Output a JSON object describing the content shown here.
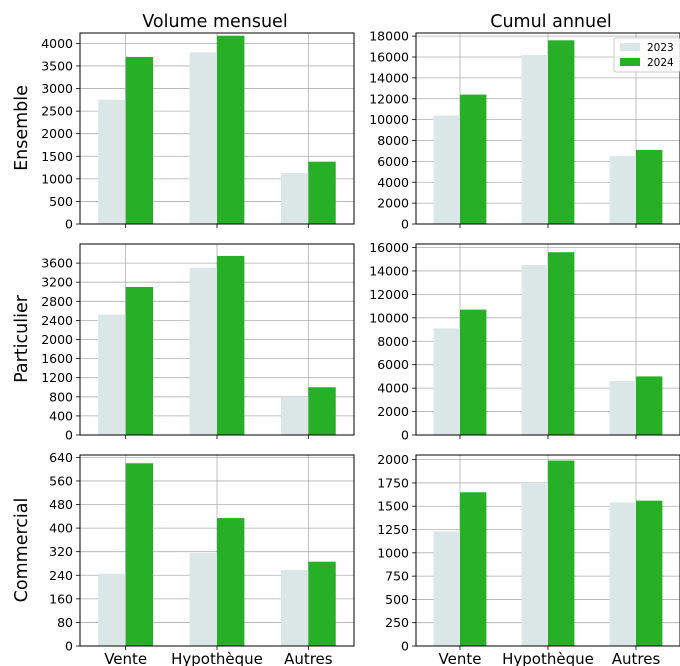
{
  "figure": {
    "column_titles": [
      "Volume mensuel",
      "Cumul annuel"
    ],
    "row_labels": [
      "Ensemble",
      "Particulier",
      "Commercial"
    ]
  },
  "legend": {
    "placement": "top-right",
    "entries": [
      {
        "label": "2023",
        "color": "#dbe6e6"
      },
      {
        "label": "2024",
        "color": "#27b027"
      }
    ]
  },
  "chart_data": [
    {
      "type": "bar",
      "row": "Ensemble",
      "column": "Volume mensuel",
      "categories": [
        "Vente",
        "Hypothèque",
        "Autres"
      ],
      "series": [
        {
          "name": "2023",
          "values": [
            2750,
            3800,
            1130
          ]
        },
        {
          "name": "2024",
          "values": [
            3700,
            4170,
            1380
          ]
        }
      ],
      "ylim": [
        0,
        4230
      ],
      "yticks": [
        0,
        500,
        1000,
        1500,
        2000,
        2500,
        3000,
        3500,
        4000
      ],
      "grid": true
    },
    {
      "type": "bar",
      "row": "Ensemble",
      "column": "Cumul annuel",
      "categories": [
        "Vente",
        "Hypothèque",
        "Autres"
      ],
      "series": [
        {
          "name": "2023",
          "values": [
            10400,
            16200,
            6500
          ]
        },
        {
          "name": "2024",
          "values": [
            12400,
            17600,
            7100
          ]
        }
      ],
      "ylim": [
        0,
        18300
      ],
      "yticks": [
        0,
        2000,
        4000,
        6000,
        8000,
        10000,
        12000,
        14000,
        16000,
        18000
      ],
      "grid": true
    },
    {
      "type": "bar",
      "row": "Particulier",
      "column": "Volume mensuel",
      "categories": [
        "Vente",
        "Hypothèque",
        "Autres"
      ],
      "series": [
        {
          "name": "2023",
          "values": [
            2520,
            3500,
            800
          ]
        },
        {
          "name": "2024",
          "values": [
            3100,
            3750,
            1000
          ]
        }
      ],
      "ylim": [
        0,
        4000
      ],
      "yticks": [
        0,
        400,
        800,
        1200,
        1600,
        2000,
        2400,
        2800,
        3200,
        3600
      ],
      "grid": true
    },
    {
      "type": "bar",
      "row": "Particulier",
      "column": "Cumul annuel",
      "categories": [
        "Vente",
        "Hypothèque",
        "Autres"
      ],
      "series": [
        {
          "name": "2023",
          "values": [
            9100,
            14500,
            4600
          ]
        },
        {
          "name": "2024",
          "values": [
            10700,
            15600,
            5000
          ]
        }
      ],
      "ylim": [
        0,
        16300
      ],
      "yticks": [
        0,
        2000,
        4000,
        6000,
        8000,
        10000,
        12000,
        14000,
        16000
      ],
      "grid": true
    },
    {
      "type": "bar",
      "row": "Commercial",
      "column": "Volume mensuel",
      "categories": [
        "Vente",
        "Hypothèque",
        "Autres"
      ],
      "series": [
        {
          "name": "2023",
          "values": [
            245,
            315,
            258
          ]
        },
        {
          "name": "2024",
          "values": [
            620,
            434,
            286
          ]
        }
      ],
      "ylim": [
        0,
        648
      ],
      "yticks": [
        0,
        80,
        160,
        240,
        320,
        400,
        480,
        560,
        640
      ],
      "grid": true
    },
    {
      "type": "bar",
      "row": "Commercial",
      "column": "Cumul annuel",
      "categories": [
        "Vente",
        "Hypothèque",
        "Autres"
      ],
      "series": [
        {
          "name": "2023",
          "values": [
            1230,
            1750,
            1540
          ]
        },
        {
          "name": "2024",
          "values": [
            1650,
            1990,
            1560
          ]
        }
      ],
      "ylim": [
        0,
        2050
      ],
      "yticks": [
        0,
        250,
        500,
        750,
        1000,
        1250,
        1500,
        1750,
        2000
      ],
      "grid": true
    }
  ]
}
